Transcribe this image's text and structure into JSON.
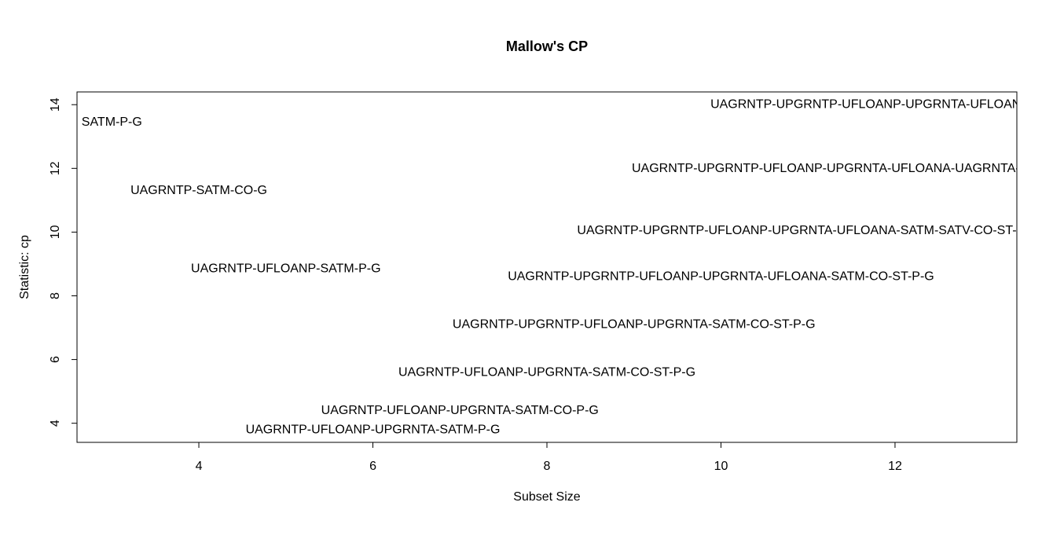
{
  "chart_data": {
    "type": "scatter",
    "title": "Mallow's CP",
    "xlabel": "Subset Size",
    "ylabel": "Statistic: cp",
    "xlim": [
      2.6,
      13.4
    ],
    "ylim": [
      3.4,
      14.4
    ],
    "xticks": [
      4,
      6,
      8,
      10,
      12
    ],
    "yticks": [
      4,
      6,
      8,
      10,
      12,
      14
    ],
    "grid": false,
    "points": [
      {
        "x": 3,
        "y": 13.45,
        "label": "SATM-P-G"
      },
      {
        "x": 4,
        "y": 11.3,
        "label": "UAGRNTP-SATM-CO-G"
      },
      {
        "x": 5,
        "y": 8.85,
        "label": "UAGRNTP-UFLOANP-SATM-P-G"
      },
      {
        "x": 6,
        "y": 3.8,
        "label": "UAGRNTP-UFLOANP-UPGRNTA-SATM-P-G"
      },
      {
        "x": 7,
        "y": 4.4,
        "label": "UAGRNTP-UFLOANP-UPGRNTA-SATM-CO-P-G"
      },
      {
        "x": 8,
        "y": 5.6,
        "label": "UAGRNTP-UFLOANP-UPGRNTA-SATM-CO-ST-P-G"
      },
      {
        "x": 9,
        "y": 7.1,
        "label": "UAGRNTP-UPGRNTP-UFLOANP-UPGRNTA-SATM-CO-ST-P-G"
      },
      {
        "x": 10,
        "y": 8.6,
        "label": "UAGRNTP-UPGRNTP-UFLOANP-UPGRNTA-UFLOANA-SATM-CO-ST-P-G"
      },
      {
        "x": 11,
        "y": 10.05,
        "label": "UAGRNTP-UPGRNTP-UFLOANP-UPGRNTA-UFLOANA-SATM-SATV-CO-ST-P-G"
      },
      {
        "x": 12,
        "y": 12.0,
        "label": "UAGRNTP-UPGRNTP-UFLOANP-UPGRNTA-UFLOANA-UAGRNTA-SATM-SATV-CO-ST-P-G"
      },
      {
        "x": 13,
        "y": 14.0,
        "label": "UAGRNTP-UPGRNTP-UFLOANP-UPGRNTA-UFLOANA-UAGRNTA-SATM-SATV-CI-CO-ST-P-G"
      }
    ]
  }
}
